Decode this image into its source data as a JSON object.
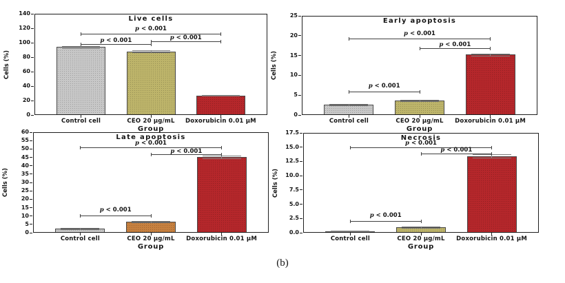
{
  "figure": {
    "caption": "(b)"
  },
  "chart_data": [
    {
      "type": "bar",
      "title": "Live cells",
      "xlabel": "Group",
      "ylabel": "Cells (%)",
      "categories": [
        "Control cell",
        "CEO 20 μg/mL",
        "Doxorubicin 0.01 μM"
      ],
      "values": [
        94,
        88,
        27
      ],
      "errors": [
        1.5,
        1.2,
        0.8
      ],
      "bar_colors": [
        "#c7c7c7",
        "#bdb46a",
        "#b5272b"
      ],
      "ylim": [
        0,
        140
      ],
      "yticks": [
        0,
        20,
        40,
        60,
        80,
        100,
        120,
        140
      ],
      "ytick_labels": [
        "0",
        "20",
        "40",
        "60",
        "80",
        "100",
        "120",
        "140"
      ],
      "grid": false,
      "significance_brackets": [
        {
          "from": 0,
          "to": 2,
          "height": 112,
          "label": "p < 0.001",
          "label_offset": -12
        },
        {
          "from": 0,
          "to": 1,
          "height": 98,
          "label": "p < 0.001",
          "label_offset": -10
        },
        {
          "from": 1,
          "to": 2,
          "height": 102,
          "label": "p < 0.001",
          "label_offset": -10
        }
      ]
    },
    {
      "type": "bar",
      "title": "Early apoptosis",
      "xlabel": "Group",
      "ylabel": "Cells (%)",
      "categories": [
        "Control cell",
        "CEO 20 μg/mL",
        "Doxorubicin 0.01 μM"
      ],
      "values": [
        2.6,
        3.7,
        15.2
      ],
      "errors": [
        0.2,
        0.2,
        0.3
      ],
      "bar_colors": [
        "#c7c7c7",
        "#bdb46a",
        "#b5272b"
      ],
      "ylim": [
        0,
        25
      ],
      "yticks": [
        0,
        5,
        10,
        15,
        20,
        25
      ],
      "ytick_labels": [
        "0",
        "5",
        "10",
        "15",
        "20",
        "25"
      ],
      "grid": false,
      "significance_brackets": [
        {
          "from": 0,
          "to": 2,
          "height": 19.3,
          "label": "p < 0.001",
          "label_offset": -12
        },
        {
          "from": 1,
          "to": 2,
          "height": 16.8,
          "label": "p < 0.001",
          "label_offset": -10
        },
        {
          "from": 0,
          "to": 1,
          "height": 5.9,
          "label": "p < 0.001",
          "label_offset": -13
        }
      ]
    },
    {
      "type": "bar",
      "title": "Late apoptosis",
      "xlabel": "Group",
      "ylabel": "Cells (%)",
      "categories": [
        "Control cell",
        "CEO 20 μg/mL",
        "Doxorubicin 0.01 μM"
      ],
      "values": [
        2.6,
        6.5,
        45.2
      ],
      "errors": [
        0.4,
        0.4,
        0.8
      ],
      "bar_colors": [
        "#c7c7c7",
        "#c6803f",
        "#b5272b"
      ],
      "ylim": [
        0,
        60
      ],
      "yticks": [
        0,
        5,
        10,
        15,
        20,
        25,
        30,
        35,
        40,
        45,
        50,
        55,
        60
      ],
      "ytick_labels": [
        "0",
        "5",
        "10",
        "15",
        "20",
        "25",
        "30",
        "35",
        "40",
        "45",
        "50",
        "55",
        "60"
      ],
      "grid": false,
      "significance_brackets": [
        {
          "from": 0,
          "to": 2,
          "height": 51,
          "label": "p < 0.001",
          "label_offset": -11
        },
        {
          "from": 1,
          "to": 2,
          "height": 47,
          "label": "p < 0.001",
          "label_offset": -9
        },
        {
          "from": 0,
          "to": 1,
          "height": 10.2,
          "label": "p < 0.001",
          "label_offset": -13
        }
      ]
    },
    {
      "type": "bar",
      "title": "Necrosis",
      "xlabel": "Group",
      "ylabel": "Cells (%)",
      "categories": [
        "Control cell",
        "CEO 20 μg/mL",
        "Doxorubicin 0.01 μM"
      ],
      "values": [
        0.3,
        1.0,
        13.4
      ],
      "errors": [
        0.08,
        0.12,
        0.3
      ],
      "bar_colors": [
        "#c7c7c7",
        "#bdb46a",
        "#b5272b"
      ],
      "ylim": [
        0,
        17.5
      ],
      "yticks": [
        0,
        2.5,
        5,
        7.5,
        10,
        12.5,
        15,
        17.5
      ],
      "ytick_labels": [
        "0.0",
        "2.5",
        "5.0",
        "7.5",
        "10.0",
        "12.5",
        "15.0",
        "17.5"
      ],
      "grid": false,
      "significance_brackets": [
        {
          "from": 0,
          "to": 2,
          "height": 15.0,
          "label": "p < 0.001",
          "label_offset": -11
        },
        {
          "from": 1,
          "to": 2,
          "height": 13.9,
          "label": "p < 0.001",
          "label_offset": -10
        },
        {
          "from": 0,
          "to": 1,
          "height": 2.05,
          "label": "p < 0.001",
          "label_offset": -13
        }
      ]
    }
  ]
}
